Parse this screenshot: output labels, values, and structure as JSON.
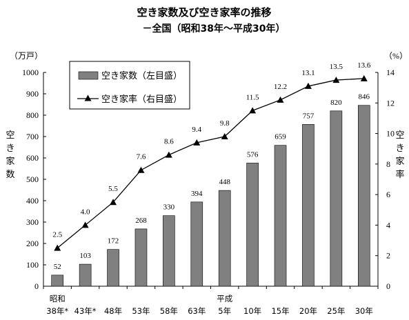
{
  "chart_data": {
    "type": "bar",
    "title": "空き家数及び空き家率の推移",
    "subtitle": "－全国（昭和38年～平成30年）",
    "categories": [
      "38年*",
      "43年*",
      "48年",
      "53年",
      "58年",
      "63年",
      "5年",
      "10年",
      "15年",
      "20年",
      "25年",
      "30年"
    ],
    "era_labels": [
      {
        "label": "昭和",
        "index": 0
      },
      {
        "label": "平成",
        "index": 6
      }
    ],
    "series": [
      {
        "name": "空き家数（左目盛）",
        "type": "bar",
        "axis": "left",
        "color": "#808080",
        "values": [
          52,
          103,
          172,
          268,
          330,
          394,
          448,
          576,
          659,
          757,
          820,
          846
        ],
        "value_labels": [
          "52",
          "103",
          "172",
          "268",
          "330",
          "394",
          "448",
          "576",
          "659",
          "757",
          "820",
          "846"
        ]
      },
      {
        "name": "空き家率（右目盛）",
        "type": "line",
        "axis": "right",
        "color": "#000000",
        "marker": "triangle",
        "values": [
          2.5,
          4.0,
          5.5,
          7.6,
          8.6,
          9.4,
          9.8,
          11.5,
          12.2,
          13.1,
          13.5,
          13.6
        ],
        "value_labels": [
          "2.5",
          "4.0",
          "5.5",
          "7.6",
          "8.6",
          "9.4",
          "9.8",
          "11.5",
          "12.2",
          "13.1",
          "13.5",
          "13.6"
        ]
      }
    ],
    "y_left": {
      "label": "空き家数",
      "unit": "（万戸）",
      "ylim": [
        0,
        1000
      ],
      "ticks": [
        0,
        100,
        200,
        300,
        400,
        500,
        600,
        700,
        800,
        900,
        1000
      ]
    },
    "y_right": {
      "label": "空き家率",
      "unit": "（%）",
      "ylim": [
        0,
        14
      ],
      "ticks": [
        0,
        2,
        4,
        6,
        8,
        10,
        12,
        14
      ]
    },
    "legend": {
      "placement": "top-left"
    },
    "grid": false
  }
}
